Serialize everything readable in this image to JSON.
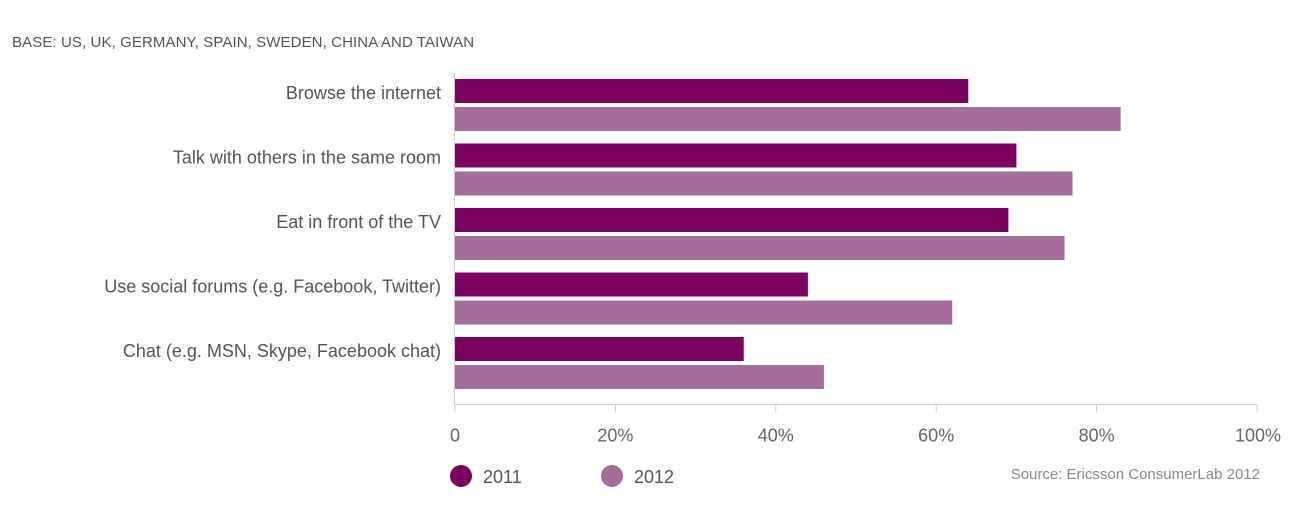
{
  "base_note": "BASE: US, UK, GERMANY, SPAIN, SWEDEN, CHINA AND TAIWAN",
  "source": "Source: Ericsson ConsumerLab 2012",
  "colors": {
    "s2011": "#7b0260",
    "s2012": "#a46e9a",
    "axis": "#cccccc",
    "label": "#555555",
    "tick": "#666666"
  },
  "chart_data": {
    "type": "bar",
    "orientation": "horizontal",
    "categories": [
      "Browse the internet",
      "Talk with others in the same room",
      "Eat in front of the TV",
      "Use social forums (e.g. Facebook, Twitter)",
      "Chat (e.g. MSN, Skype, Facebook chat)"
    ],
    "series": [
      {
        "name": "2011",
        "values": [
          64,
          70,
          69,
          44,
          36
        ]
      },
      {
        "name": "2012",
        "values": [
          83,
          77,
          76,
          62,
          46
        ]
      }
    ],
    "xlim": [
      0,
      100
    ],
    "x_ticks": [
      {
        "value": 0,
        "label": "0"
      },
      {
        "value": 20,
        "label": "20%"
      },
      {
        "value": 40,
        "label": "40%"
      },
      {
        "value": 60,
        "label": "60%"
      },
      {
        "value": 80,
        "label": "80%"
      },
      {
        "value": 100,
        "label": "100%"
      }
    ],
    "grid": false,
    "legend": "bottom-left"
  }
}
